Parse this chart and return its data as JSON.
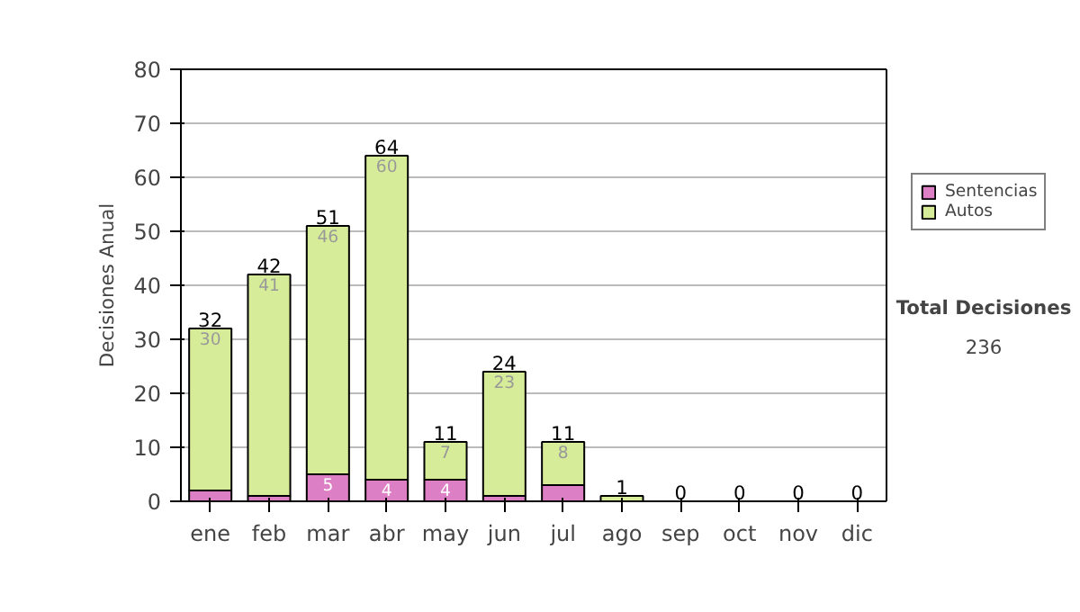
{
  "chart_data": {
    "type": "bar",
    "stacked": true,
    "ylabel": "Decisiones Anual",
    "categories": [
      "ene",
      "feb",
      "mar",
      "abr",
      "may",
      "jun",
      "jul",
      "ago",
      "sep",
      "oct",
      "nov",
      "dic"
    ],
    "series": [
      {
        "name": "Sentencias",
        "color": "#dd7fc4",
        "values": [
          2,
          1,
          5,
          4,
          4,
          1,
          3,
          0,
          0,
          0,
          0,
          0
        ],
        "value_labels": [
          null,
          null,
          "5",
          "4",
          "4",
          null,
          null,
          null,
          null,
          null,
          null,
          null
        ]
      },
      {
        "name": "Autos",
        "color": "#d6ec98",
        "values": [
          30,
          41,
          46,
          60,
          7,
          23,
          8,
          1,
          0,
          0,
          0,
          0
        ],
        "value_labels": [
          "30",
          "41",
          "46",
          "60",
          "7",
          "23",
          "8",
          null,
          null,
          null,
          null,
          null
        ]
      }
    ],
    "totals": [
      "32",
      "42",
      "51",
      "64",
      "11",
      "24",
      "11",
      "1",
      "0",
      "0",
      "0",
      "0"
    ],
    "ylim": [
      0,
      80
    ],
    "yticks": [
      0,
      10,
      20,
      30,
      40,
      50,
      60,
      70,
      80
    ],
    "grid": "y",
    "legend": "right",
    "annotations": [
      "Total Decisiones",
      "236"
    ]
  }
}
